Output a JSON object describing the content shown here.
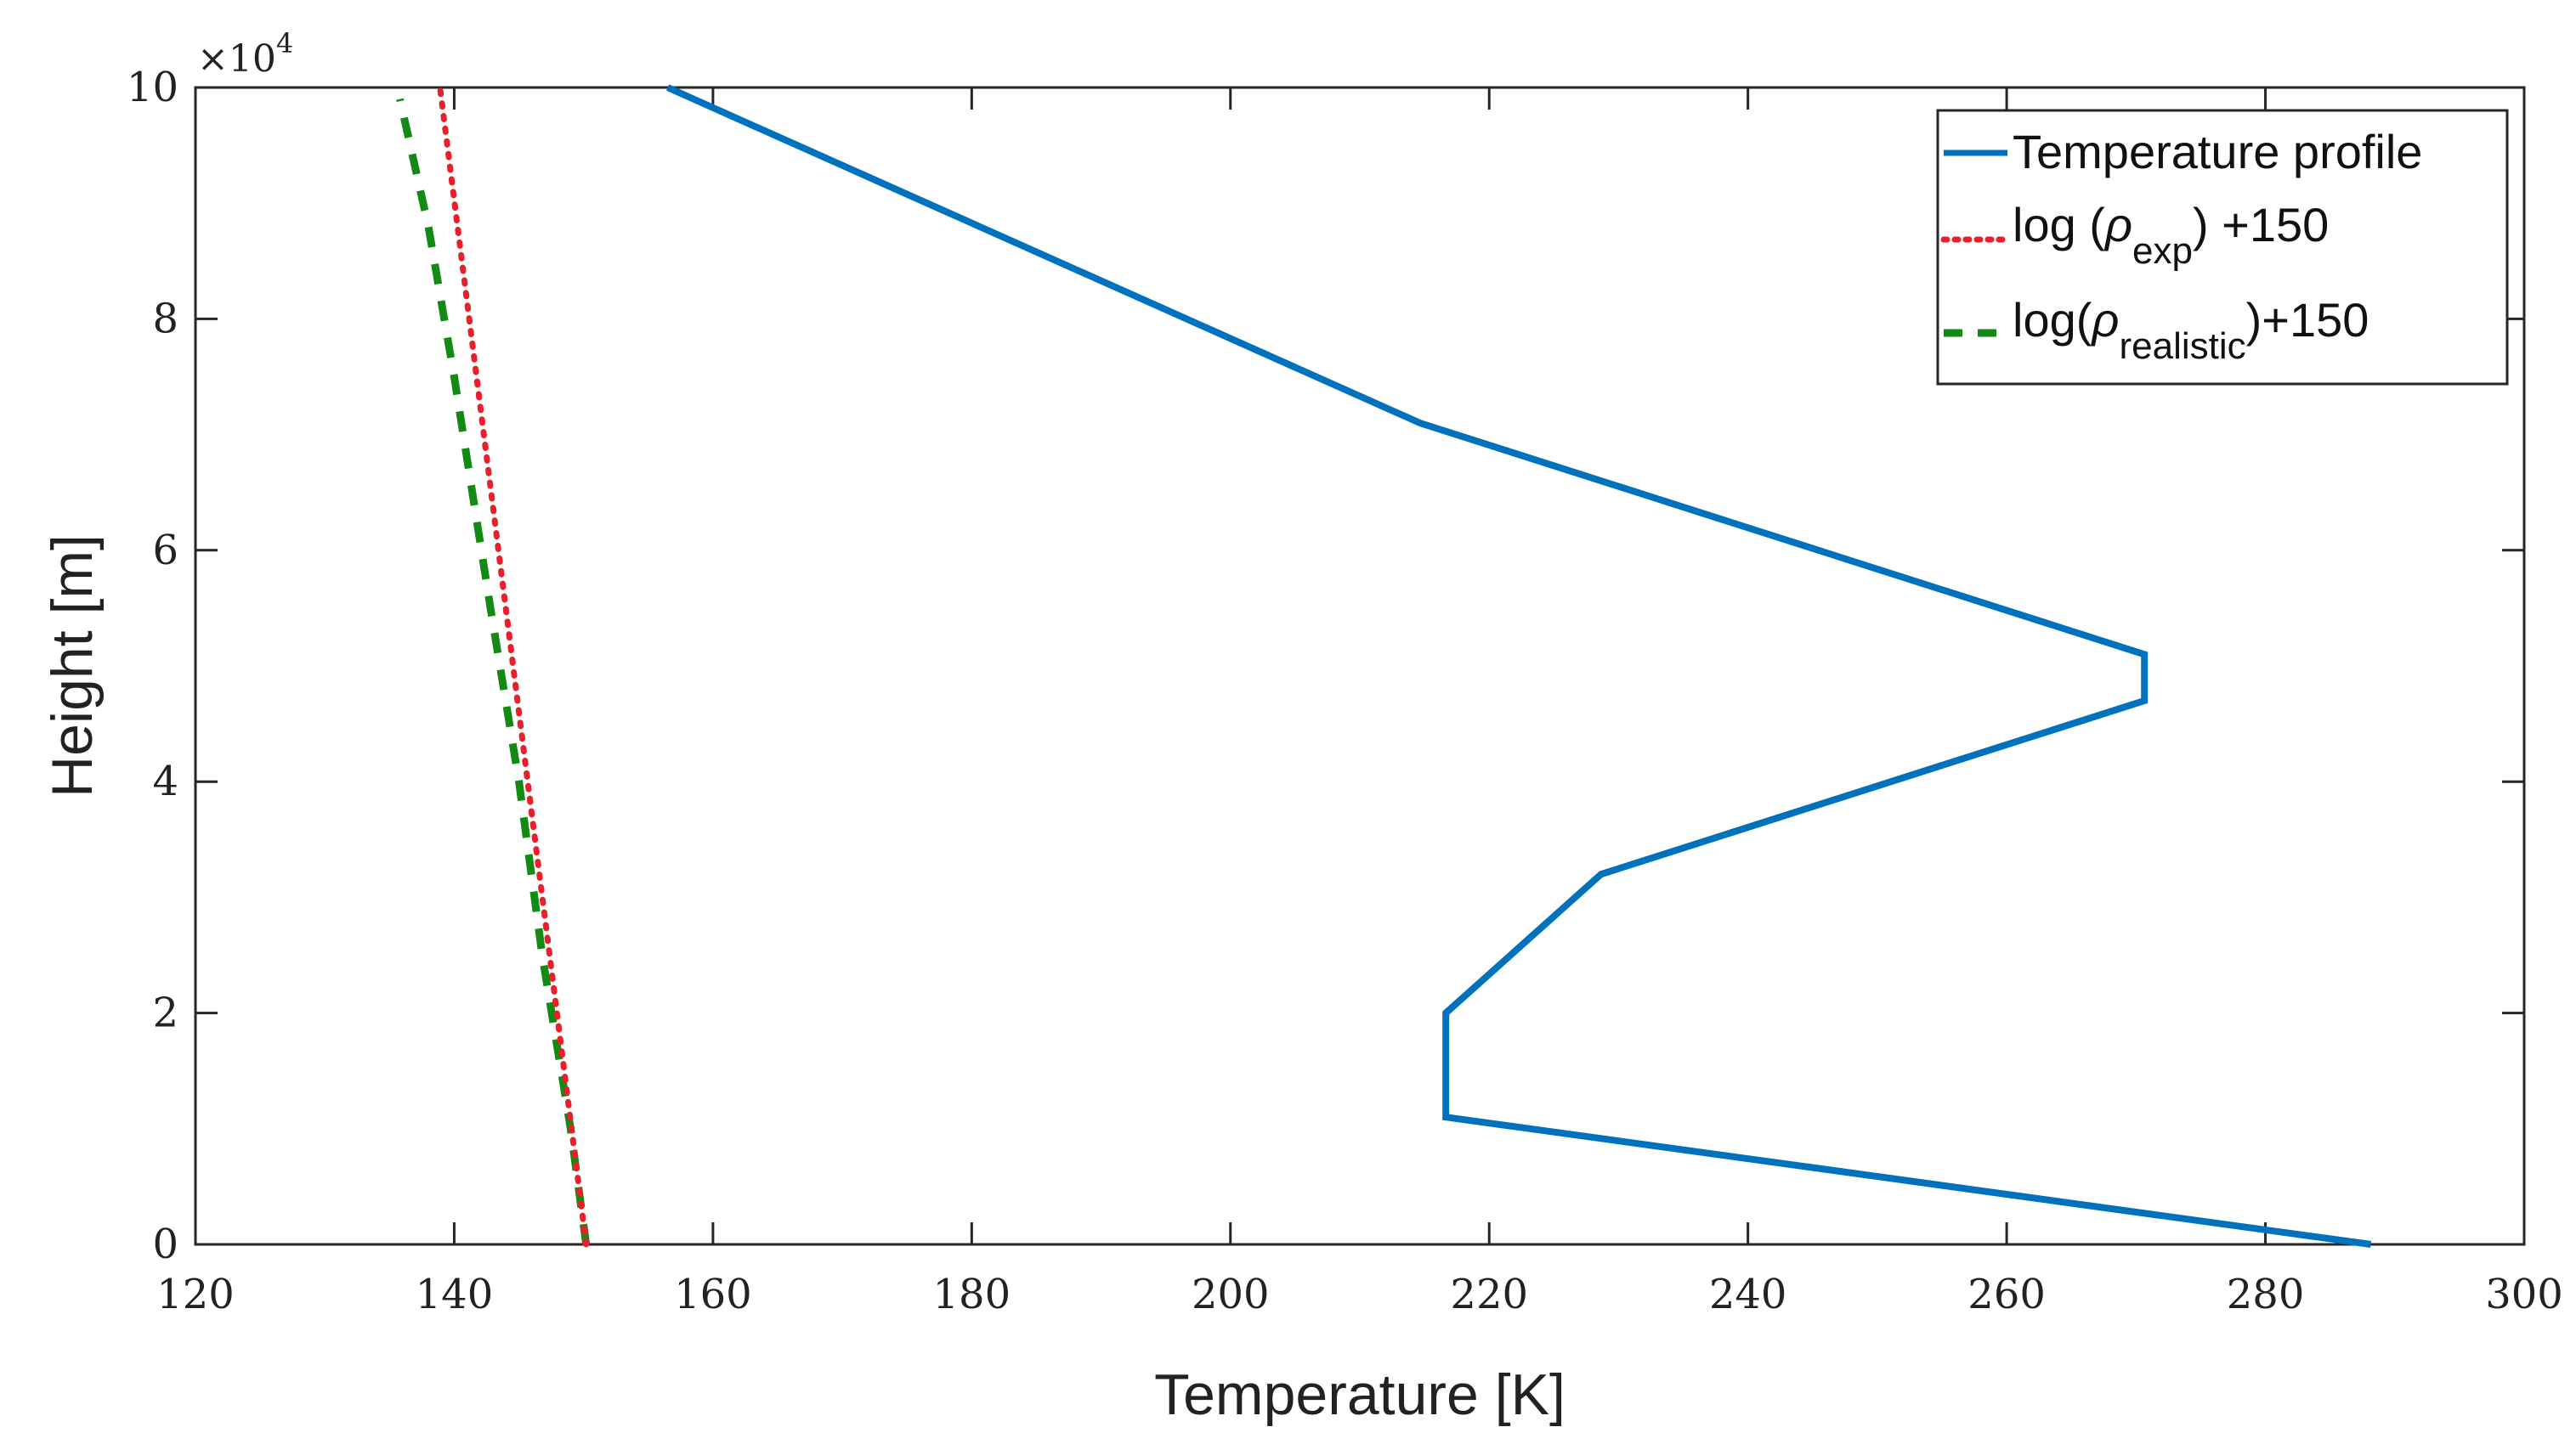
{
  "chart_data": {
    "type": "line",
    "xlabel": "Temperature [K]",
    "ylabel": "Height [m]",
    "xlim": [
      120,
      300
    ],
    "ylim": [
      0,
      100000
    ],
    "x_ticks": [
      120,
      140,
      160,
      180,
      200,
      220,
      240,
      260,
      280,
      300
    ],
    "y_ticks": [
      0,
      20000,
      40000,
      60000,
      80000,
      100000
    ],
    "y_tick_labels": [
      "0",
      "2",
      "4",
      "6",
      "8",
      "10"
    ],
    "y_exponent": {
      "base": "×10",
      "power": "4"
    },
    "grid": false,
    "legend_position": "top-right",
    "series": [
      {
        "name": "Temperature profile",
        "color": "#0072BD",
        "style": "solid",
        "x": [
          288.15,
          216.65,
          216.65,
          228.65,
          270.65,
          270.65,
          214.65,
          156.5
        ],
        "y": [
          0,
          11000,
          20000,
          32000,
          47000,
          51000,
          71000,
          100000
        ]
      },
      {
        "name": "log (ρexp) +150",
        "legend": {
          "pre": "log (",
          "rho": "ρ",
          "sub": "exp",
          "post": ") +150"
        },
        "color": "#E8202A",
        "style": "dotted",
        "x": [
          150.2,
          138.9
        ],
        "y": [
          0,
          100000
        ]
      },
      {
        "name": "log(ρrealistic)+150",
        "legend": {
          "pre": "log(",
          "rho": "ρ",
          "sub": "realistic",
          "post": ")+150"
        },
        "color": "#138A13",
        "style": "dashed",
        "x": [
          150.2,
          149.0,
          146.8,
          145.0,
          142.8,
          140.0,
          138.0,
          135.8
        ],
        "y": [
          0,
          10000,
          25000,
          40000,
          55000,
          75000,
          88000,
          99000
        ]
      }
    ]
  }
}
